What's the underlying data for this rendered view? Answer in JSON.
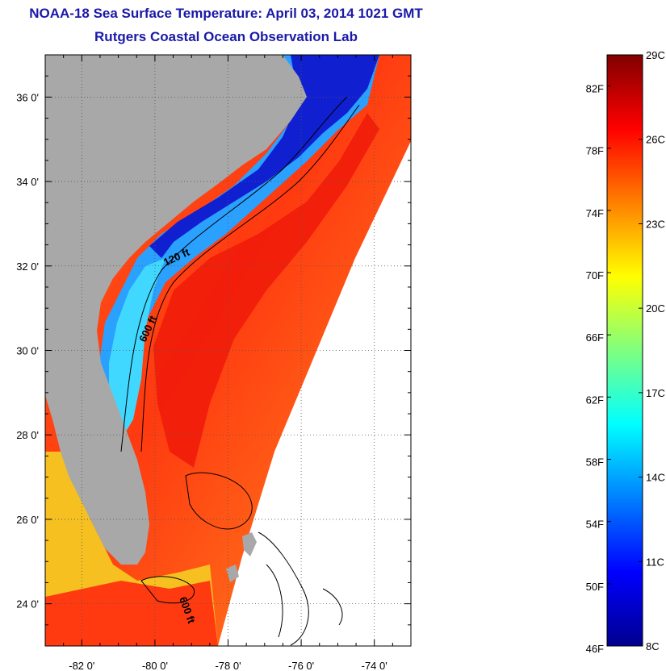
{
  "title": "NOAA-18 Sea Surface Temperature:  April 03, 2014 1021 GMT",
  "subtitle": "Rutgers Coastal Ocean Observation Lab",
  "map": {
    "lon_labels": [
      "-82 0'",
      "-80 0'",
      "-78 0'",
      "-76 0'",
      "-74 0'"
    ],
    "lat_labels": [
      "36 0'",
      "34 0'",
      "32 0'",
      "30 0'",
      "28 0'",
      "26 0'",
      "24 0'"
    ],
    "contour_labels": [
      "120 ft",
      "600 ft",
      "600 ft"
    ],
    "colors": {
      "land": "#a8a8a8",
      "no_data": "#ffffff"
    }
  },
  "colorbar": {
    "fahrenheit": [
      "82F",
      "78F",
      "74F",
      "70F",
      "66F",
      "62F",
      "58F",
      "54F",
      "50F",
      "46F"
    ],
    "celsius": [
      "29C",
      "26C",
      "23C",
      "20C",
      "17C",
      "14C",
      "11C",
      "8C"
    ],
    "colormap": "jet",
    "range_c": [
      8,
      29
    ],
    "range_f": [
      46,
      84
    ]
  }
}
